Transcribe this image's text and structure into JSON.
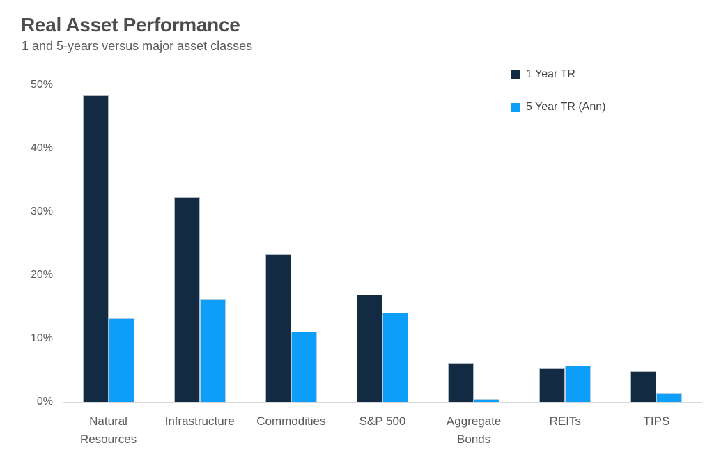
{
  "header": {
    "title": "Real Asset Performance",
    "subtitle": "1 and 5-years versus major asset classes"
  },
  "legend": {
    "items": [
      {
        "label": "1 Year TR",
        "color": "#122a42"
      },
      {
        "label": "5 Year TR (Ann)",
        "color": "#0d9efa"
      }
    ]
  },
  "chart_data": {
    "type": "bar",
    "title": "Real Asset Performance",
    "subtitle": "1 and 5-years versus major asset classes",
    "categories": [
      "Natural\nResources",
      "Infrastructure",
      "Commodities",
      "S&P 500",
      "Aggregate\nBonds",
      "REITs",
      "TIPS"
    ],
    "series": [
      {
        "name": "1 Year TR",
        "color": "#122a42",
        "values": [
          48.3,
          32.3,
          23.3,
          16.9,
          6.2,
          5.4,
          4.8
        ]
      },
      {
        "name": "5 Year TR (Ann)",
        "color": "#0d9efa",
        "values": [
          13.2,
          16.3,
          11.1,
          14.1,
          0.4,
          5.7,
          1.4
        ]
      }
    ],
    "xlabel": "",
    "ylabel": "",
    "ylim": [
      0,
      50
    ],
    "yticks": [
      "0%",
      "10%",
      "20%",
      "30%",
      "40%",
      "50%"
    ],
    "grid": false,
    "legend_position": "top-right",
    "axis_line_color": "#d9d9d9",
    "text_color": "#595959"
  }
}
